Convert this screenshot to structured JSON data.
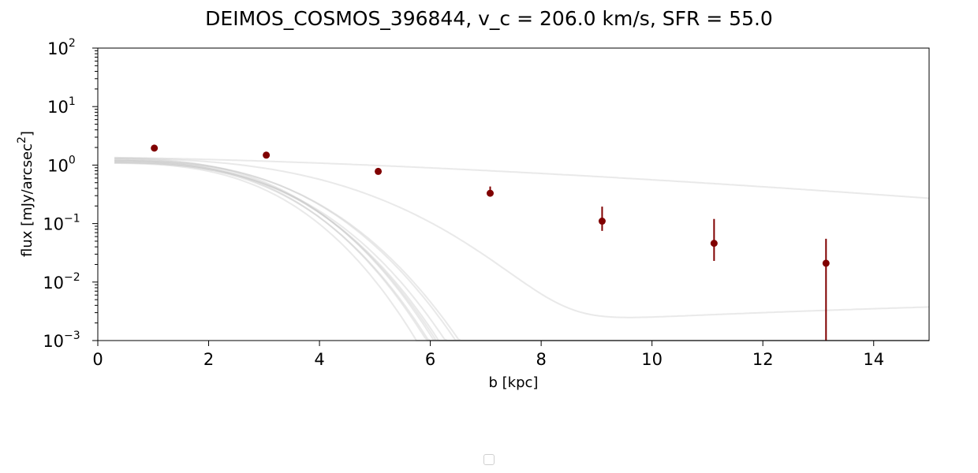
{
  "chart_data": {
    "type": "scatter",
    "title": "DEIMOS_COSMOS_396844, v_c = 206.0 km/s, SFR = 55.0",
    "xlabel": "b [kpc]",
    "ylabel_main": "flux [mJy/arcsec",
    "ylabel_sup": "2",
    "ylabel_end": "]",
    "xlim": [
      0,
      15
    ],
    "ylim": [
      0.001,
      100
    ],
    "yscale": "log",
    "grid": false,
    "x_ticks": [
      0,
      2,
      4,
      6,
      8,
      10,
      12,
      14
    ],
    "x_tick_labels": [
      "0",
      "2",
      "4",
      "6",
      "8",
      "10",
      "12",
      "14"
    ],
    "y_ticks": [
      {
        "value": 100,
        "base": "10",
        "exp": "2"
      },
      {
        "value": 10,
        "base": "10",
        "exp": "1"
      },
      {
        "value": 1,
        "base": "10",
        "exp": "0"
      },
      {
        "value": 0.1,
        "base": "10",
        "exp": "−1"
      },
      {
        "value": 0.01,
        "base": "10",
        "exp": "−2"
      },
      {
        "value": 0.001,
        "base": "10",
        "exp": "−3"
      }
    ],
    "points": {
      "color": "#800000",
      "x": [
        1.02,
        3.04,
        5.06,
        7.08,
        9.1,
        11.12,
        13.14
      ],
      "y": [
        1.95,
        1.48,
        0.78,
        0.33,
        0.11,
        0.046,
        0.021
      ],
      "err_low": [
        0,
        0,
        0,
        0.025,
        0.035,
        0.023,
        0.021
      ],
      "err_high": [
        0,
        0,
        0,
        0.1,
        0.085,
        0.074,
        0.034
      ]
    },
    "model_curves": {
      "color": "#c0c0c0",
      "x_start": 0.3,
      "curves": [
        {
          "a": 1.1,
          "b": 0.015,
          "c": 0.026
        },
        {
          "a": 1.15,
          "b": 0.014,
          "c": 0.028
        },
        {
          "a": 1.2,
          "b": 0.013,
          "c": 0.029
        },
        {
          "a": 1.12,
          "b": 0.012,
          "c": 0.031
        },
        {
          "a": 1.18,
          "b": 0.011,
          "c": 0.032
        },
        {
          "a": 1.25,
          "b": 0.016,
          "c": 0.024
        },
        {
          "a": 1.3,
          "b": 0.013,
          "c": 0.03
        },
        {
          "a": 1.08,
          "b": 0.01,
          "c": 0.035
        },
        {
          "a": 1.22,
          "b": 0.017,
          "c": 0.023
        },
        {
          "a": 1.35,
          "b": 0.028,
          "c": 0.0,
          "p": 1.5,
          "floor": 0.005
        },
        {
          "a": 1.32,
          "b": 0.022,
          "c": 0.01,
          "p": 1.6,
          "floor": 0.0035
        }
      ]
    }
  }
}
